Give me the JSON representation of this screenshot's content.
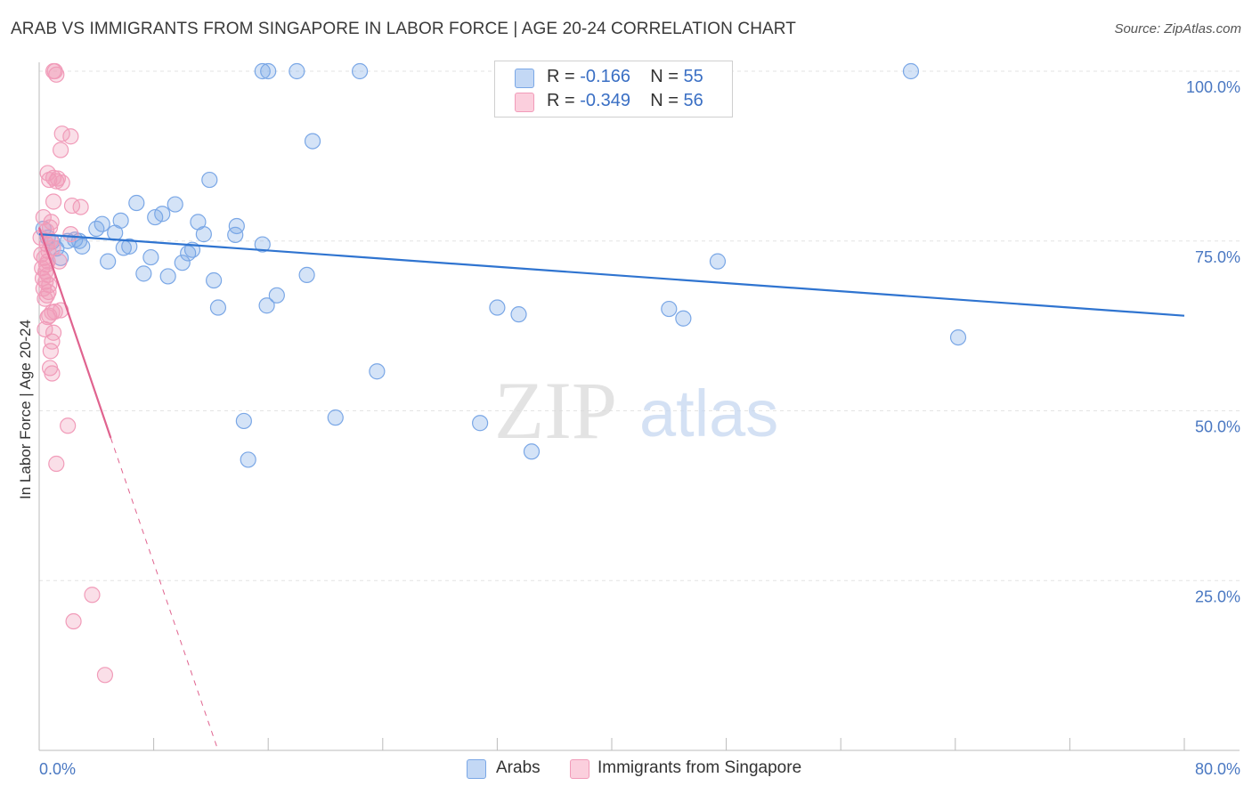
{
  "title": "ARAB VS IMMIGRANTS FROM SINGAPORE IN LABOR FORCE | AGE 20-24 CORRELATION CHART",
  "source": "Source: ZipAtlas.com",
  "watermark": {
    "zip": "ZIP",
    "atlas": "atlas"
  },
  "legend": {
    "arabs": {
      "r_label": "R =",
      "r_value": "-0.166",
      "n_label": "N =",
      "n_value": "55"
    },
    "singapore": {
      "r_label": "R =",
      "r_value": "-0.349",
      "n_label": "N =",
      "n_value": "56"
    }
  },
  "bottom_legend": {
    "arabs": "Arabs",
    "singapore": "Immigrants from Singapore"
  },
  "chart_data": {
    "type": "scatter",
    "title": "ARAB VS IMMIGRANTS FROM SINGAPORE IN LABOR FORCE | AGE 20-24 CORRELATION CHART",
    "xlabel": "",
    "ylabel": "In Labor Force | Age 20-24",
    "xlim": [
      0,
      80
    ],
    "ylim": [
      0,
      100
    ],
    "x_tick_labels": [
      "0.0%",
      "80.0%"
    ],
    "y_ticks": [
      25,
      50,
      75,
      100
    ],
    "y_tick_labels": [
      "25.0%",
      "50.0%",
      "75.0%",
      "100.0%"
    ],
    "colors": {
      "arabs": "#7aa7e6",
      "arabs_line": "#2f74d0",
      "singapore": "#f19bb9",
      "singapore_line": "#e0638f",
      "tick": "#4a78c2"
    },
    "series": [
      {
        "name": "Arabs",
        "r": -0.166,
        "n": 55,
        "trend": {
          "x": [
            0,
            80
          ],
          "y": [
            76.0,
            64.0
          ],
          "dashed_from": null
        },
        "points": [
          [
            0.3,
            76.8
          ],
          [
            0.6,
            75.5
          ],
          [
            0.9,
            74.9
          ],
          [
            1.2,
            73.9
          ],
          [
            1.5,
            72.5
          ],
          [
            2.0,
            75.0
          ],
          [
            2.5,
            75.2
          ],
          [
            2.8,
            75.0
          ],
          [
            3.0,
            74.2
          ],
          [
            4.0,
            76.8
          ],
          [
            4.8,
            72.0
          ],
          [
            4.4,
            77.5
          ],
          [
            5.3,
            76.2
          ],
          [
            5.7,
            78.0
          ],
          [
            5.9,
            74.0
          ],
          [
            6.3,
            74.2
          ],
          [
            6.8,
            80.6
          ],
          [
            7.3,
            70.2
          ],
          [
            7.8,
            72.6
          ],
          [
            8.1,
            78.5
          ],
          [
            8.6,
            79.0
          ],
          [
            9.0,
            69.8
          ],
          [
            9.5,
            80.4
          ],
          [
            10.0,
            71.8
          ],
          [
            10.4,
            73.2
          ],
          [
            10.7,
            73.7
          ],
          [
            11.1,
            77.8
          ],
          [
            11.5,
            76.0
          ],
          [
            11.9,
            84.0
          ],
          [
            12.2,
            69.2
          ],
          [
            12.5,
            65.2
          ],
          [
            13.7,
            75.9
          ],
          [
            13.8,
            77.2
          ],
          [
            14.3,
            48.5
          ],
          [
            14.6,
            42.8
          ],
          [
            15.6,
            74.5
          ],
          [
            15.9,
            65.5
          ],
          [
            16.6,
            67.0
          ],
          [
            16.0,
            100
          ],
          [
            15.6,
            100
          ],
          [
            18.0,
            100
          ],
          [
            18.7,
            70.0
          ],
          [
            19.1,
            89.7
          ],
          [
            20.7,
            49.0
          ],
          [
            22.4,
            100
          ],
          [
            23.6,
            55.8
          ],
          [
            30.8,
            48.2
          ],
          [
            32.0,
            65.2
          ],
          [
            33.5,
            64.2
          ],
          [
            34.4,
            44.0
          ],
          [
            44.0,
            65.0
          ],
          [
            45.0,
            63.6
          ],
          [
            47.4,
            72.0
          ],
          [
            60.9,
            100
          ],
          [
            64.2,
            60.8
          ]
        ]
      },
      {
        "name": "Immigrants from Singapore",
        "r": -0.349,
        "n": 56,
        "trend": {
          "x": [
            0,
            5,
            12.5
          ],
          "y": [
            77.0,
            46.0,
            0
          ],
          "dashed_from": 5
        },
        "points": [
          [
            0.1,
            75.5
          ],
          [
            0.15,
            73.0
          ],
          [
            0.2,
            71.0
          ],
          [
            0.25,
            69.5
          ],
          [
            0.3,
            68.0
          ],
          [
            0.35,
            72.5
          ],
          [
            0.4,
            66.5
          ],
          [
            0.45,
            70.5
          ],
          [
            0.5,
            76.5
          ],
          [
            0.55,
            74.5
          ],
          [
            0.6,
            72.0
          ],
          [
            0.65,
            67.5
          ],
          [
            0.7,
            64.0
          ],
          [
            0.75,
            77.0
          ],
          [
            0.8,
            75.0
          ],
          [
            0.5,
            71.5
          ],
          [
            0.6,
            70.0
          ],
          [
            0.7,
            68.5
          ],
          [
            0.4,
            62.0
          ],
          [
            0.9,
            64.5
          ],
          [
            0.9,
            55.5
          ],
          [
            0.75,
            56.3
          ],
          [
            0.6,
            63.8
          ],
          [
            0.8,
            58.8
          ],
          [
            0.9,
            60.2
          ],
          [
            1.0,
            61.5
          ],
          [
            1.1,
            64.6
          ],
          [
            1.2,
            83.8
          ],
          [
            0.7,
            84.0
          ],
          [
            0.6,
            85.0
          ],
          [
            1.0,
            84.3
          ],
          [
            1.3,
            84.2
          ],
          [
            1.6,
            83.6
          ],
          [
            1.4,
            72.0
          ],
          [
            1.5,
            64.8
          ],
          [
            1.0,
            80.8
          ],
          [
            1.5,
            88.4
          ],
          [
            1.6,
            90.8
          ],
          [
            2.2,
            90.4
          ],
          [
            2.3,
            80.2
          ],
          [
            2.9,
            80.0
          ],
          [
            2.2,
            76.0
          ],
          [
            1.0,
            100
          ],
          [
            1.2,
            99.5
          ],
          [
            1.1,
            100
          ],
          [
            2.0,
            47.8
          ],
          [
            1.2,
            42.2
          ],
          [
            3.7,
            22.9
          ],
          [
            2.4,
            19.0
          ],
          [
            4.6,
            11.1
          ],
          [
            0.3,
            78.5
          ],
          [
            0.45,
            69.0
          ],
          [
            0.55,
            67.0
          ],
          [
            0.65,
            73.5
          ],
          [
            0.85,
            77.8
          ],
          [
            0.95,
            74.0
          ]
        ]
      }
    ]
  }
}
